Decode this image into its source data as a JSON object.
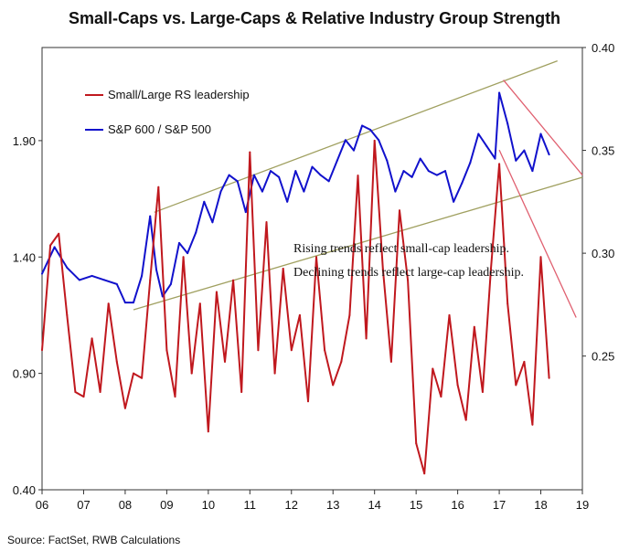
{
  "title": "Small-Caps vs. Large-Caps & Relative Industry Group Strength",
  "source": "Source: FactSet, RWB Calculations",
  "annotations": [
    "Rising trends reflect small-cap leadership.",
    "Declining trends reflect large-cap leadership."
  ],
  "chart_data": {
    "type": "line",
    "title": "Small-Caps vs. Large-Caps & Relative Industry Group Strength",
    "grid": false,
    "legend_position": "top-left",
    "x_axis": {
      "tick_labels": [
        "06",
        "07",
        "08",
        "09",
        "10",
        "11",
        "12",
        "13",
        "14",
        "15",
        "16",
        "17",
        "18",
        "19"
      ],
      "range": [
        2006,
        2019
      ]
    },
    "y_left": {
      "tick_labels": [
        "0.40",
        "0.90",
        "1.40",
        "1.90"
      ],
      "range": [
        0.4,
        2.3
      ]
    },
    "y_right": {
      "tick_labels": [
        "0.25",
        "0.30",
        "0.35",
        "0.40"
      ],
      "range": [
        0.185,
        0.4
      ]
    },
    "series": [
      {
        "name": "S&P 600 / S&P 500",
        "axis": "right",
        "color": "#1111cc",
        "x": [
          2006.0,
          2006.3,
          2006.6,
          2006.9,
          2007.2,
          2007.5,
          2007.8,
          2008.0,
          2008.2,
          2008.4,
          2008.6,
          2008.75,
          2008.9,
          2009.1,
          2009.3,
          2009.5,
          2009.7,
          2009.9,
          2010.1,
          2010.3,
          2010.5,
          2010.7,
          2010.9,
          2011.1,
          2011.3,
          2011.5,
          2011.7,
          2011.9,
          2012.1,
          2012.3,
          2012.5,
          2012.7,
          2012.9,
          2013.1,
          2013.3,
          2013.5,
          2013.7,
          2013.9,
          2014.1,
          2014.3,
          2014.5,
          2014.7,
          2014.9,
          2015.1,
          2015.3,
          2015.5,
          2015.7,
          2015.9,
          2016.1,
          2016.3,
          2016.5,
          2016.7,
          2016.9,
          2017.0,
          2017.2,
          2017.4,
          2017.6,
          2017.8,
          2018.0,
          2018.2
        ],
        "y": [
          0.29,
          0.303,
          0.293,
          0.287,
          0.289,
          0.287,
          0.285,
          0.276,
          0.276,
          0.289,
          0.318,
          0.292,
          0.279,
          0.285,
          0.305,
          0.3,
          0.31,
          0.325,
          0.315,
          0.33,
          0.338,
          0.335,
          0.32,
          0.338,
          0.33,
          0.34,
          0.337,
          0.325,
          0.34,
          0.33,
          0.342,
          0.338,
          0.335,
          0.345,
          0.355,
          0.35,
          0.362,
          0.36,
          0.355,
          0.345,
          0.33,
          0.34,
          0.337,
          0.346,
          0.34,
          0.338,
          0.34,
          0.325,
          0.334,
          0.344,
          0.358,
          0.352,
          0.346,
          0.378,
          0.363,
          0.345,
          0.35,
          0.34,
          0.358,
          0.348
        ]
      },
      {
        "name": "Small/Large RS leadership",
        "axis": "left",
        "color": "#c0181e",
        "x": [
          2006.0,
          2006.2,
          2006.4,
          2006.6,
          2006.8,
          2007.0,
          2007.2,
          2007.4,
          2007.6,
          2007.8,
          2008.0,
          2008.2,
          2008.4,
          2008.6,
          2008.8,
          2009.0,
          2009.2,
          2009.4,
          2009.6,
          2009.8,
          2010.0,
          2010.2,
          2010.4,
          2010.6,
          2010.8,
          2011.0,
          2011.2,
          2011.4,
          2011.6,
          2011.8,
          2012.0,
          2012.2,
          2012.4,
          2012.6,
          2012.8,
          2013.0,
          2013.2,
          2013.4,
          2013.6,
          2013.8,
          2014.0,
          2014.2,
          2014.4,
          2014.6,
          2014.8,
          2015.0,
          2015.2,
          2015.4,
          2015.6,
          2015.8,
          2016.0,
          2016.2,
          2016.4,
          2016.6,
          2016.8,
          2017.0,
          2017.2,
          2017.4,
          2017.6,
          2017.8,
          2018.0,
          2018.2
        ],
        "y": [
          1.0,
          1.45,
          1.5,
          1.15,
          0.82,
          0.8,
          1.05,
          0.82,
          1.2,
          0.95,
          0.75,
          0.9,
          0.88,
          1.3,
          1.7,
          1.0,
          0.8,
          1.4,
          0.9,
          1.2,
          0.65,
          1.25,
          0.95,
          1.3,
          0.82,
          1.85,
          1.0,
          1.55,
          0.9,
          1.35,
          1.0,
          1.15,
          0.78,
          1.4,
          1.0,
          0.85,
          0.95,
          1.15,
          1.75,
          1.05,
          1.9,
          1.35,
          0.95,
          1.6,
          1.3,
          0.6,
          0.47,
          0.92,
          0.8,
          1.15,
          0.85,
          0.7,
          1.1,
          0.82,
          1.35,
          1.8,
          1.2,
          0.85,
          0.95,
          0.68,
          1.4,
          0.88
        ]
      }
    ],
    "trendlines": [
      {
        "series": "S&P 600 / S&P 500",
        "x": [
          2008.7,
          2018.4
        ],
        "y": [
          0.3199,
          0.3935
        ],
        "color": "#a0a060"
      },
      {
        "series": "S&P 600 / S&P 500",
        "x": [
          2008.2,
          2019.0
        ],
        "y": [
          0.2725,
          0.3369
        ],
        "color": "#a0a060"
      },
      {
        "series": "S&P 600 / S&P 500",
        "x": [
          2017.1,
          2019.0
        ],
        "y": [
          0.3842,
          0.338
        ],
        "color": "#e06070"
      },
      {
        "series": "Small/Large RS leadership",
        "x": [
          2017.0,
          2018.85
        ],
        "y": [
          1.86,
          1.14
        ],
        "color": "#e06070"
      }
    ]
  }
}
